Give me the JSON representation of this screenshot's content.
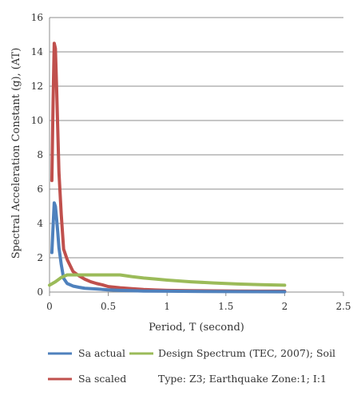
{
  "chart_data": {
    "type": "line",
    "title": "",
    "xlabel": "Period, T (second)",
    "ylabel": "Spectral Acceleration Constant (g), (AT)",
    "xlim": [
      0,
      2.5
    ],
    "ylim": [
      0,
      16
    ],
    "xticks": [
      0,
      0.5,
      1,
      1.5,
      2,
      2.5
    ],
    "xtick_labels": [
      "0",
      "0.5",
      "1",
      "1.5",
      "2",
      "2.5"
    ],
    "yticks": [
      0,
      2,
      4,
      6,
      8,
      10,
      12,
      14,
      16
    ],
    "ytick_labels": [
      "0",
      "2",
      "4",
      "6",
      "8",
      "10",
      "12",
      "14",
      "16"
    ],
    "grid": "horizontal",
    "legend_position": "bottom",
    "legend": {
      "sa_actual": "Sa actual",
      "sa_scaled": "Sa scaled",
      "design_line1": "Design Spectrum (TEC, 2007); Soil",
      "design_line2": "Type: Z3; Earthquake Zone:1; I:1"
    },
    "series": [
      {
        "name": "Sa scaled",
        "color": "#c0504d",
        "x": [
          0.02,
          0.03,
          0.04,
          0.05,
          0.06,
          0.07,
          0.08,
          0.1,
          0.12,
          0.15,
          0.2,
          0.25,
          0.3,
          0.35,
          0.4,
          0.45,
          0.5,
          0.6,
          0.7,
          0.8,
          0.9,
          1.0,
          1.2,
          1.4,
          1.6,
          1.8,
          2.0
        ],
        "y": [
          6.5,
          11.0,
          14.5,
          14.2,
          12.0,
          9.5,
          7.0,
          4.5,
          2.5,
          1.9,
          1.2,
          0.95,
          0.75,
          0.6,
          0.5,
          0.42,
          0.32,
          0.25,
          0.2,
          0.15,
          0.12,
          0.1,
          0.08,
          0.07,
          0.06,
          0.05,
          0.05
        ]
      },
      {
        "name": "Sa actual",
        "color": "#4f81bd",
        "x": [
          0.02,
          0.03,
          0.04,
          0.05,
          0.06,
          0.07,
          0.08,
          0.1,
          0.12,
          0.15,
          0.2,
          0.25,
          0.3,
          0.4,
          0.5,
          0.6,
          0.7,
          0.8,
          1.0,
          1.2,
          1.5,
          2.0
        ],
        "y": [
          2.3,
          3.8,
          5.2,
          5.0,
          4.3,
          3.5,
          2.6,
          1.6,
          0.8,
          0.5,
          0.35,
          0.28,
          0.22,
          0.18,
          0.13,
          0.1,
          0.08,
          0.06,
          0.05,
          0.04,
          0.03,
          0.02
        ]
      },
      {
        "name": "Design Spectrum (TEC, 2007); Soil Type: Z3; Earthquake Zone:1; I:1",
        "color": "#9bbb59",
        "x": [
          0.0,
          0.05,
          0.1,
          0.15,
          0.2,
          0.3,
          0.4,
          0.5,
          0.6,
          0.7,
          0.8,
          0.9,
          1.0,
          1.2,
          1.4,
          1.6,
          1.8,
          2.0
        ],
        "y": [
          0.4,
          0.6,
          0.85,
          1.0,
          1.0,
          1.0,
          1.0,
          1.0,
          1.0,
          0.9,
          0.82,
          0.76,
          0.7,
          0.6,
          0.53,
          0.47,
          0.43,
          0.4
        ]
      }
    ]
  }
}
